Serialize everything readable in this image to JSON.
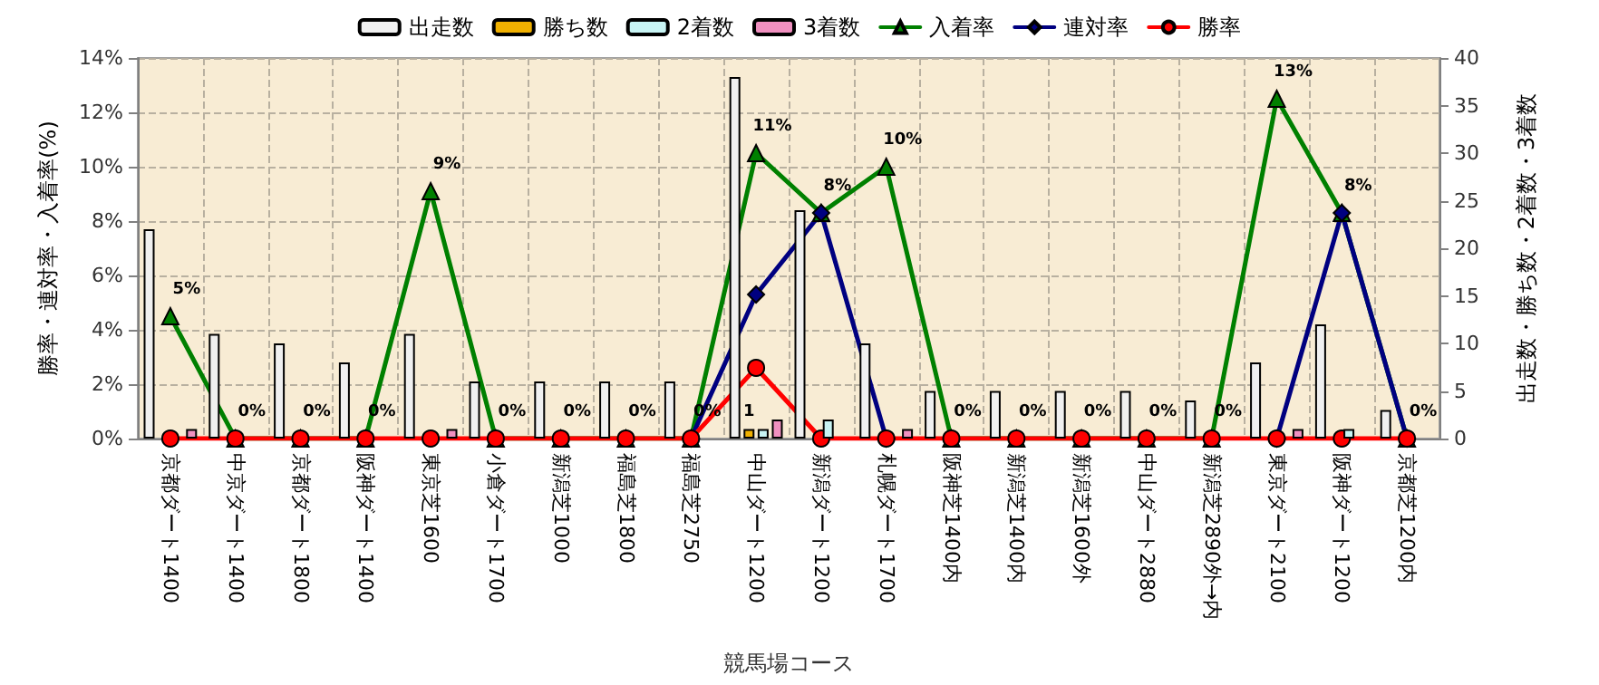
{
  "chart_data": {
    "type": "bar",
    "xlabel": "競馬場コース",
    "ylabel": "勝率・連対率・入着率(%)",
    "y2label": "出走数・勝ち数・2着数・3着数",
    "categories": [
      "京都ダート1400",
      "中京ダート1400",
      "京都ダート1800",
      "阪神ダート1400",
      "東京芝1600",
      "小倉ダート1700",
      "新潟芝1000",
      "福島芝1800",
      "福島芝2750",
      "中山ダート1200",
      "新潟ダート1200",
      "札幌ダート1700",
      "阪神芝1400内",
      "新潟芝1400内",
      "新潟芝1600外",
      "中山ダート2880",
      "新潟芝2890外→内",
      "東京ダート2100",
      "阪神ダート1200",
      "京都芝1200内"
    ],
    "series": [
      {
        "name": "出走数",
        "axis": "y2",
        "color": "#f0f0f0",
        "values": [
          22,
          11,
          10,
          8,
          11,
          6,
          6,
          6,
          6,
          38,
          24,
          10,
          5,
          5,
          5,
          5,
          4,
          8,
          12,
          3
        ]
      },
      {
        "name": "勝ち数",
        "axis": "y2",
        "color": "#f0b000",
        "values": [
          0,
          0,
          0,
          0,
          0,
          0,
          0,
          0,
          0,
          1,
          0,
          0,
          0,
          0,
          0,
          0,
          0,
          0,
          0,
          0
        ],
        "value_labels": [
          null,
          null,
          null,
          null,
          null,
          null,
          null,
          null,
          null,
          "1",
          null,
          null,
          null,
          null,
          null,
          null,
          null,
          null,
          null,
          null
        ]
      },
      {
        "name": "2着数",
        "axis": "y2",
        "color": "#c8f4f4",
        "values": [
          0,
          0,
          0,
          0,
          0,
          0,
          0,
          0,
          0,
          1,
          2,
          0,
          0,
          0,
          0,
          0,
          0,
          0,
          1,
          0
        ]
      },
      {
        "name": "3着数",
        "axis": "y2",
        "color": "#f090c0",
        "values": [
          1,
          0,
          0,
          0,
          1,
          0,
          0,
          0,
          0,
          2,
          0,
          1,
          0,
          0,
          0,
          0,
          0,
          1,
          0,
          0
        ]
      },
      {
        "name": "入着率",
        "type": "line",
        "marker": "triangle",
        "color": "#008000",
        "values": [
          4.5,
          0,
          0,
          0,
          9.1,
          0,
          0,
          0,
          0,
          10.5,
          8.3,
          10,
          0,
          0,
          0,
          0,
          0,
          12.5,
          8.3,
          0
        ],
        "value_labels": [
          "5%",
          "0%",
          "0%",
          "0%",
          "9%",
          "0%",
          "0%",
          "0%",
          "0%",
          "11%",
          "8%",
          "10%",
          "0%",
          "0%",
          "0%",
          "0%",
          "0%",
          "13%",
          "8%",
          "0%"
        ]
      },
      {
        "name": "連対率",
        "type": "line",
        "marker": "diamond",
        "color": "#000080",
        "values": [
          null,
          null,
          null,
          null,
          null,
          null,
          null,
          null,
          0,
          5.3,
          8.3,
          0,
          null,
          null,
          null,
          null,
          null,
          0,
          8.3,
          0
        ]
      },
      {
        "name": "勝率",
        "type": "line",
        "marker": "circle",
        "color": "#ff0000",
        "values": [
          0,
          0,
          0,
          0,
          0,
          0,
          0,
          0,
          0,
          2.6,
          0,
          0,
          0,
          0,
          0,
          0,
          0,
          0,
          0,
          0
        ]
      }
    ],
    "ylim": [
      0,
      14
    ],
    "yticks": [
      {
        "value": 0,
        "label": "0%"
      },
      {
        "value": 2,
        "label": "2%"
      },
      {
        "value": 4,
        "label": "4%"
      },
      {
        "value": 6,
        "label": "6%"
      },
      {
        "value": 8,
        "label": "8%"
      },
      {
        "value": 10,
        "label": "10%"
      },
      {
        "value": 12,
        "label": "12%"
      },
      {
        "value": 14,
        "label": "14%"
      }
    ],
    "y2lim": [
      0,
      40
    ],
    "y2ticks": [
      0,
      5,
      10,
      15,
      20,
      25,
      30,
      35,
      40
    ],
    "grid": true,
    "legend": "top",
    "line_style": "solid"
  }
}
